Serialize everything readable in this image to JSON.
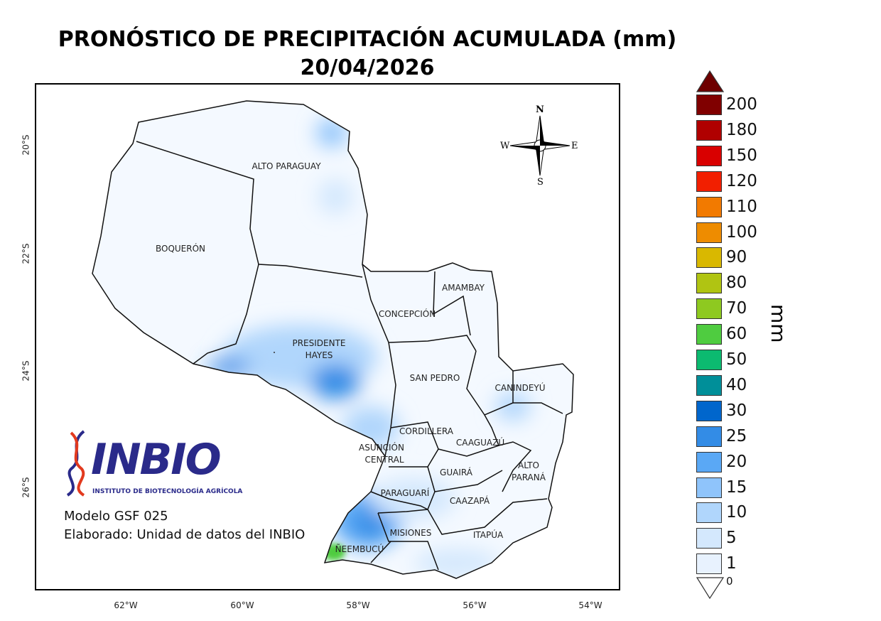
{
  "title": {
    "line1": "PRONÓSTICO DE PRECIPITACIÓN ACUMULADA (mm)",
    "line2": "20/04/2026"
  },
  "axes": {
    "x_ticks": [
      "62°W",
      "60°W",
      "58°W",
      "56°W",
      "54°W"
    ],
    "y_ticks": [
      "20°S",
      "22°S",
      "24°S",
      "26°S"
    ]
  },
  "departments": [
    "ALTO PARAGUAY",
    "BOQUERÓN",
    "PRESIDENTE HAYES",
    "CONCEPCIÓN",
    "AMAMBAY",
    "SAN PEDRO",
    "CANINDEYÚ",
    "CORDILLERA",
    "CAAGUAZÚ",
    "ASUNCIÓN",
    "CENTRAL",
    "GUAIRÁ",
    "ALTO PARANÁ",
    "PARAGUARÍ",
    "CAAZAPÁ",
    "MISIONES",
    "ITAPÚA",
    "ÑEEMBUCÚ"
  ],
  "compass": {
    "n": "N",
    "s": "S",
    "e": "E",
    "w": "W"
  },
  "logo": {
    "name": "INBIO",
    "subtitle": "INSTITUTO DE BIOTECNOLOGÍA AGRÍCOLA"
  },
  "info": {
    "model": "Modelo GSF 025",
    "author": "Elaborado: Unidad de datos del INBIO"
  },
  "legend": {
    "unit": "mm",
    "over_color": "#6e0000",
    "under_label": "0",
    "items": [
      {
        "label": "200",
        "color": "#800000"
      },
      {
        "label": "180",
        "color": "#b00000"
      },
      {
        "label": "150",
        "color": "#d90000"
      },
      {
        "label": "120",
        "color": "#f21f00"
      },
      {
        "label": "110",
        "color": "#f27a00"
      },
      {
        "label": "100",
        "color": "#ee8c00"
      },
      {
        "label": "90",
        "color": "#d9b800"
      },
      {
        "label": "80",
        "color": "#b0c412"
      },
      {
        "label": "70",
        "color": "#8ec920"
      },
      {
        "label": "60",
        "color": "#4fcc40"
      },
      {
        "label": "50",
        "color": "#0cba70"
      },
      {
        "label": "40",
        "color": "#008f99"
      },
      {
        "label": "30",
        "color": "#0066cc"
      },
      {
        "label": "25",
        "color": "#338ce6"
      },
      {
        "label": "20",
        "color": "#5aa8f5"
      },
      {
        "label": "15",
        "color": "#8fc4fb"
      },
      {
        "label": "10",
        "color": "#b0d6fc"
      },
      {
        "label": "5",
        "color": "#d4e8fd"
      },
      {
        "label": "1",
        "color": "#e8f2fe"
      }
    ]
  }
}
